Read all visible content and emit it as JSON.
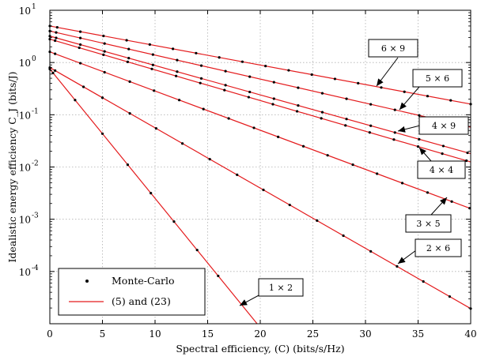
{
  "chart_data": {
    "type": "line",
    "title": "",
    "xlabel": "Spectral efficiency, (C) (bits/s/Hz)",
    "ylabel": "Idealistic energy efficiency C_J (bits/J)",
    "xlim": [
      0,
      40
    ],
    "ylim_log10": [
      -5,
      1
    ],
    "y_scale": "log",
    "grid": true,
    "legend_position": "bottom-left",
    "x_ticks": [
      "0",
      "5",
      "10",
      "15",
      "20",
      "25",
      "30",
      "35",
      "40"
    ],
    "y_ticks": [
      {
        "base": "10",
        "exp": "1",
        "log10": 1
      },
      {
        "base": "10",
        "exp": "0",
        "log10": 0
      },
      {
        "base": "10",
        "exp": "-1",
        "log10": -1
      },
      {
        "base": "10",
        "exp": "-2",
        "log10": -2
      },
      {
        "base": "10",
        "exp": "-3",
        "log10": -3
      },
      {
        "base": "10",
        "exp": "-4",
        "log10": -4
      }
    ],
    "legend": [
      {
        "label": "Monte-Carlo",
        "style": "marker"
      },
      {
        "label": "(5) and (23)",
        "style": "line"
      }
    ],
    "colors": {
      "line": "#e41a1c",
      "marker": "#000000"
    },
    "series": [
      {
        "name": "6 × 9",
        "x": [
          0,
          40
        ],
        "y": [
          5.0,
          0.16
        ],
        "mc_x": [
          0,
          0.7,
          2.9,
          5.1,
          7.3,
          9.5,
          11.7,
          13.9,
          16.1,
          18.3,
          20.5,
          22.7,
          24.9,
          27.1,
          29.3,
          31.5,
          33.7,
          35.9,
          38.1,
          40
        ]
      },
      {
        "name": "5 × 6",
        "x": [
          0,
          40
        ],
        "y": [
          4.0,
          0.058
        ],
        "mc_x": [
          0,
          0.6,
          2.9,
          5.2,
          7.5,
          9.8,
          12.1,
          14.4,
          16.7,
          19.0,
          21.3,
          23.6,
          25.9,
          28.2,
          30.5,
          32.8,
          35.1,
          37.4,
          39.7
        ]
      },
      {
        "name": "4 × 9",
        "x": [
          0,
          40
        ],
        "y": [
          3.2,
          0.018
        ],
        "mc_x": [
          0,
          0.6,
          2.9,
          5.2,
          7.5,
          9.8,
          12.1,
          14.4,
          16.7,
          19.0,
          21.3,
          23.6,
          25.9,
          28.2,
          30.5,
          32.8,
          35.1,
          37.4,
          39.7
        ]
      },
      {
        "name": "4 × 4",
        "x": [
          0,
          40
        ],
        "y": [
          2.8,
          0.0125
        ],
        "mc_x": [
          0,
          0.5,
          2.8,
          5.1,
          7.4,
          9.7,
          12.0,
          14.3,
          16.6,
          18.9,
          21.2,
          23.5,
          25.8,
          28.1,
          30.4,
          32.7,
          35.0,
          37.3,
          39.6
        ]
      },
      {
        "name": "3 × 5",
        "x": [
          0,
          40
        ],
        "y": [
          1.6,
          0.0016
        ],
        "mc_x": [
          0,
          0.5,
          2.9,
          5.2,
          7.6,
          9.9,
          12.3,
          14.6,
          17.0,
          19.4,
          21.7,
          24.1,
          26.4,
          28.8,
          31.1,
          33.5,
          35.9,
          38.2,
          39.9
        ]
      },
      {
        "name": "2 × 6",
        "x": [
          0,
          40
        ],
        "y": [
          0.8,
          1.95e-05
        ],
        "mc_x": [
          0,
          0.5,
          3.2,
          5.0,
          7.6,
          10.1,
          12.6,
          15.2,
          17.8,
          20.3,
          22.8,
          25.4,
          27.9,
          30.5,
          33.0,
          35.5,
          38.0,
          40
        ]
      },
      {
        "name": "1 × 2",
        "x": [
          0,
          19.7
        ],
        "y": [
          0.75,
          1e-05
        ],
        "mc_x": [
          0,
          0.3,
          2.4,
          5.0,
          7.4,
          9.6,
          11.8,
          14.0,
          16.0
        ]
      }
    ],
    "annotations": [
      {
        "text": "6 × 9",
        "series": "6 × 9"
      },
      {
        "text": "5 × 6",
        "series": "5 × 6"
      },
      {
        "text": "4 × 9",
        "series": "4 × 9"
      },
      {
        "text": "4 × 4",
        "series": "4 × 4"
      },
      {
        "text": "3 × 5",
        "series": "3 × 5"
      },
      {
        "text": "2 × 6",
        "series": "2 × 6"
      },
      {
        "text": "1 × 2",
        "series": "1 × 2"
      }
    ]
  }
}
